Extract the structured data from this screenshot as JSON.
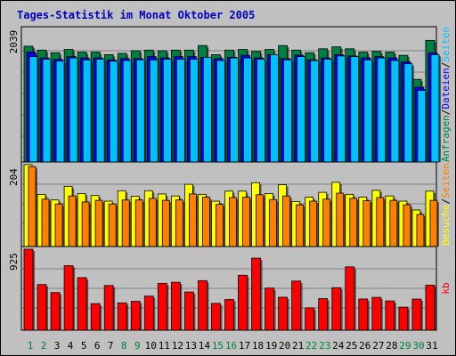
{
  "window": {
    "title": "Tages-Statistik im Monat Oktober 2005"
  },
  "colors": {
    "background": "#c0c0c0",
    "title": "#0000c0",
    "anfragen": "#008040",
    "dateien": "#0000ff",
    "seiten": "#00c0ff",
    "besuche": "#ffff00",
    "seiten_mid": "#ff8000",
    "kb": "#ff0000",
    "weekend_label": "#008040",
    "weekday_label": "#000000"
  },
  "chart_data": [
    {
      "type": "bar",
      "panel": "top",
      "ymax_label": "2039",
      "ylim": [
        0,
        2039
      ],
      "right_label": {
        "parts": [
          "Anfragen",
          "/",
          "Dateien",
          "/",
          "Seiten"
        ],
        "colors": [
          "#008040",
          "#000000",
          "#0000ff",
          "#000000",
          "#00c0ff"
        ]
      },
      "categories": [
        "1",
        "2",
        "3",
        "4",
        "5",
        "6",
        "7",
        "8",
        "9",
        "10",
        "11",
        "12",
        "13",
        "14",
        "15",
        "16",
        "17",
        "18",
        "19",
        "20",
        "21",
        "22",
        "23",
        "24",
        "25",
        "26",
        "27",
        "28",
        "29",
        "30",
        "31"
      ],
      "series": [
        {
          "name": "Anfragen",
          "color": "#008040",
          "values": [
            1780,
            1720,
            1680,
            1730,
            1690,
            1690,
            1650,
            1670,
            1710,
            1720,
            1710,
            1720,
            1720,
            1790,
            1650,
            1720,
            1730,
            1700,
            1730,
            1790,
            1720,
            1680,
            1740,
            1770,
            1740,
            1690,
            1700,
            1690,
            1640,
            1270,
            1870
          ]
        },
        {
          "name": "Dateien",
          "color": "#0000ff",
          "values": [
            1690,
            1600,
            1580,
            1620,
            1600,
            1600,
            1570,
            1590,
            1590,
            1620,
            1600,
            1620,
            1620,
            1610,
            1590,
            1610,
            1640,
            1600,
            1650,
            1590,
            1640,
            1570,
            1600,
            1650,
            1630,
            1600,
            1620,
            1600,
            1540,
            1150,
            1680
          ]
        },
        {
          "name": "Seiten",
          "color": "#00c0ff",
          "values": [
            1620,
            1580,
            1550,
            1600,
            1570,
            1580,
            1550,
            1560,
            1570,
            1570,
            1580,
            1580,
            1580,
            1610,
            1560,
            1600,
            1600,
            1580,
            1650,
            1570,
            1620,
            1560,
            1580,
            1630,
            1620,
            1570,
            1600,
            1560,
            1510,
            1100,
            1650
          ]
        }
      ]
    },
    {
      "type": "bar",
      "panel": "middle",
      "ymax_label": "204",
      "ylim": [
        0,
        204
      ],
      "right_label": {
        "parts": [
          "Besuche",
          "/",
          "Seiten"
        ],
        "colors": [
          "#ffff00",
          "#000000",
          "#ff8000"
        ]
      },
      "categories": [
        "1",
        "2",
        "3",
        "4",
        "5",
        "6",
        "7",
        "8",
        "9",
        "10",
        "11",
        "12",
        "13",
        "14",
        "15",
        "16",
        "17",
        "18",
        "19",
        "20",
        "21",
        "22",
        "23",
        "24",
        "25",
        "26",
        "27",
        "28",
        "29",
        "30",
        "31"
      ],
      "series": [
        {
          "name": "Besuche",
          "color": "#ffff00",
          "values": [
            204,
            130,
            116,
            150,
            132,
            127,
            113,
            139,
            125,
            139,
            131,
            126,
            155,
            130,
            113,
            138,
            138,
            159,
            132,
            154,
            112,
            123,
            135,
            160,
            130,
            123,
            140,
            126,
            113,
            91,
            138
          ]
        },
        {
          "name": "Seiten",
          "color": "#ff8000",
          "values": [
            199,
            118,
            106,
            126,
            111,
            115,
            106,
            116,
            116,
            120,
            115,
            116,
            131,
            123,
            105,
            122,
            123,
            129,
            117,
            126,
            104,
            113,
            118,
            133,
            120,
            114,
            122,
            115,
            104,
            80,
            115
          ]
        }
      ]
    },
    {
      "type": "bar",
      "panel": "bottom",
      "ymax_label": "925",
      "ylim": [
        0,
        925
      ],
      "right_label": {
        "parts": [
          "kb"
        ],
        "colors": [
          "#ff0000"
        ]
      },
      "categories": [
        "1",
        "2",
        "3",
        "4",
        "5",
        "6",
        "7",
        "8",
        "9",
        "10",
        "11",
        "12",
        "13",
        "14",
        "15",
        "16",
        "17",
        "18",
        "19",
        "20",
        "21",
        "22",
        "23",
        "24",
        "25",
        "26",
        "27",
        "28",
        "29",
        "30",
        "31"
      ],
      "series": [
        {
          "name": "kb",
          "color": "#ff0000",
          "values": [
            925,
            521,
            430,
            736,
            600,
            303,
            510,
            312,
            329,
            389,
            535,
            547,
            436,
            566,
            306,
            350,
            627,
            823,
            481,
            376,
            561,
            255,
            360,
            485,
            723,
            356,
            375,
            334,
            263,
            355,
            515
          ]
        }
      ]
    }
  ],
  "day_labels": [
    {
      "text": "1",
      "weekend": true
    },
    {
      "text": "2",
      "weekend": true
    },
    {
      "text": "3",
      "weekend": false
    },
    {
      "text": "4",
      "weekend": false
    },
    {
      "text": "5",
      "weekend": false
    },
    {
      "text": "6",
      "weekend": false
    },
    {
      "text": "7",
      "weekend": false
    },
    {
      "text": "8",
      "weekend": true
    },
    {
      "text": "9",
      "weekend": true
    },
    {
      "text": "10",
      "weekend": false
    },
    {
      "text": "11",
      "weekend": false
    },
    {
      "text": "12",
      "weekend": false
    },
    {
      "text": "13",
      "weekend": false
    },
    {
      "text": "14",
      "weekend": false
    },
    {
      "text": "15",
      "weekend": true
    },
    {
      "text": "16",
      "weekend": true
    },
    {
      "text": "17",
      "weekend": false
    },
    {
      "text": "18",
      "weekend": false
    },
    {
      "text": "19",
      "weekend": false
    },
    {
      "text": "20",
      "weekend": false
    },
    {
      "text": "21",
      "weekend": false
    },
    {
      "text": "22",
      "weekend": true
    },
    {
      "text": "23",
      "weekend": true
    },
    {
      "text": "24",
      "weekend": false
    },
    {
      "text": "25",
      "weekend": false
    },
    {
      "text": "26",
      "weekend": false
    },
    {
      "text": "27",
      "weekend": false
    },
    {
      "text": "28",
      "weekend": false
    },
    {
      "text": "29",
      "weekend": true
    },
    {
      "text": "30",
      "weekend": true
    },
    {
      "text": "31",
      "weekend": false
    }
  ]
}
